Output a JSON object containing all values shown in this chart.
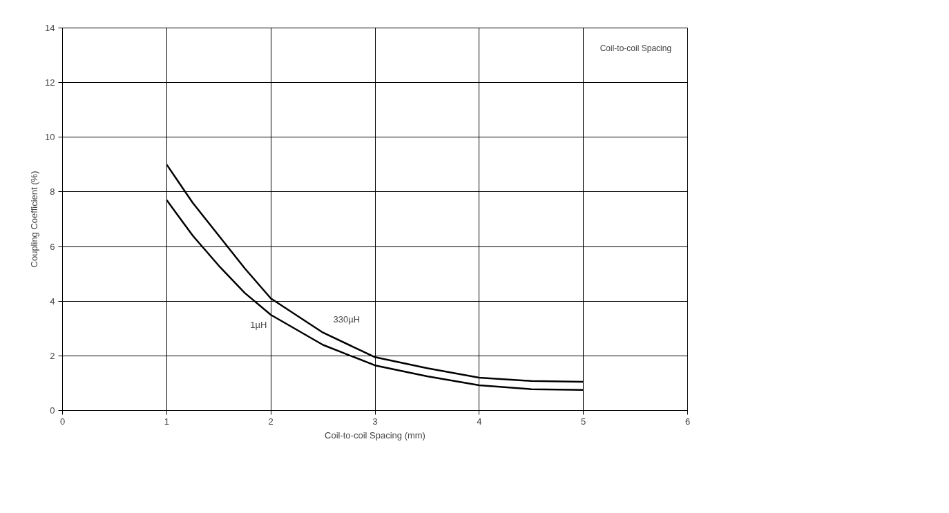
{
  "chart_data": {
    "type": "line",
    "xlabel": "Coil-to-coil Spacing (mm)",
    "ylabel": "Coupling Coefficient (%)",
    "annotations": [
      "Coil-to-coil Spacing"
    ],
    "x": [
      1,
      1.25,
      1.5,
      1.75,
      2,
      2.5,
      3,
      3.5,
      4,
      4.5,
      5
    ],
    "series": [
      {
        "name": "330µH",
        "color": "#000000",
        "values": [
          9.0,
          7.6,
          6.4,
          5.2,
          4.1,
          2.85,
          1.95,
          1.55,
          1.2,
          1.08,
          1.05
        ]
      },
      {
        "name": "1µH",
        "color": "#000000",
        "values": [
          7.7,
          6.4,
          5.3,
          4.3,
          3.5,
          2.4,
          1.65,
          1.25,
          0.92,
          0.78,
          0.75
        ]
      }
    ],
    "xlim": [
      0,
      6
    ],
    "ylim": [
      0,
      14
    ],
    "xticks": [
      0,
      1,
      2,
      3,
      4,
      5,
      6
    ],
    "yticks": [
      0,
      2,
      4,
      6,
      8,
      10,
      12,
      14
    ],
    "grid": true,
    "marker": "none",
    "line_style": "solid"
  }
}
